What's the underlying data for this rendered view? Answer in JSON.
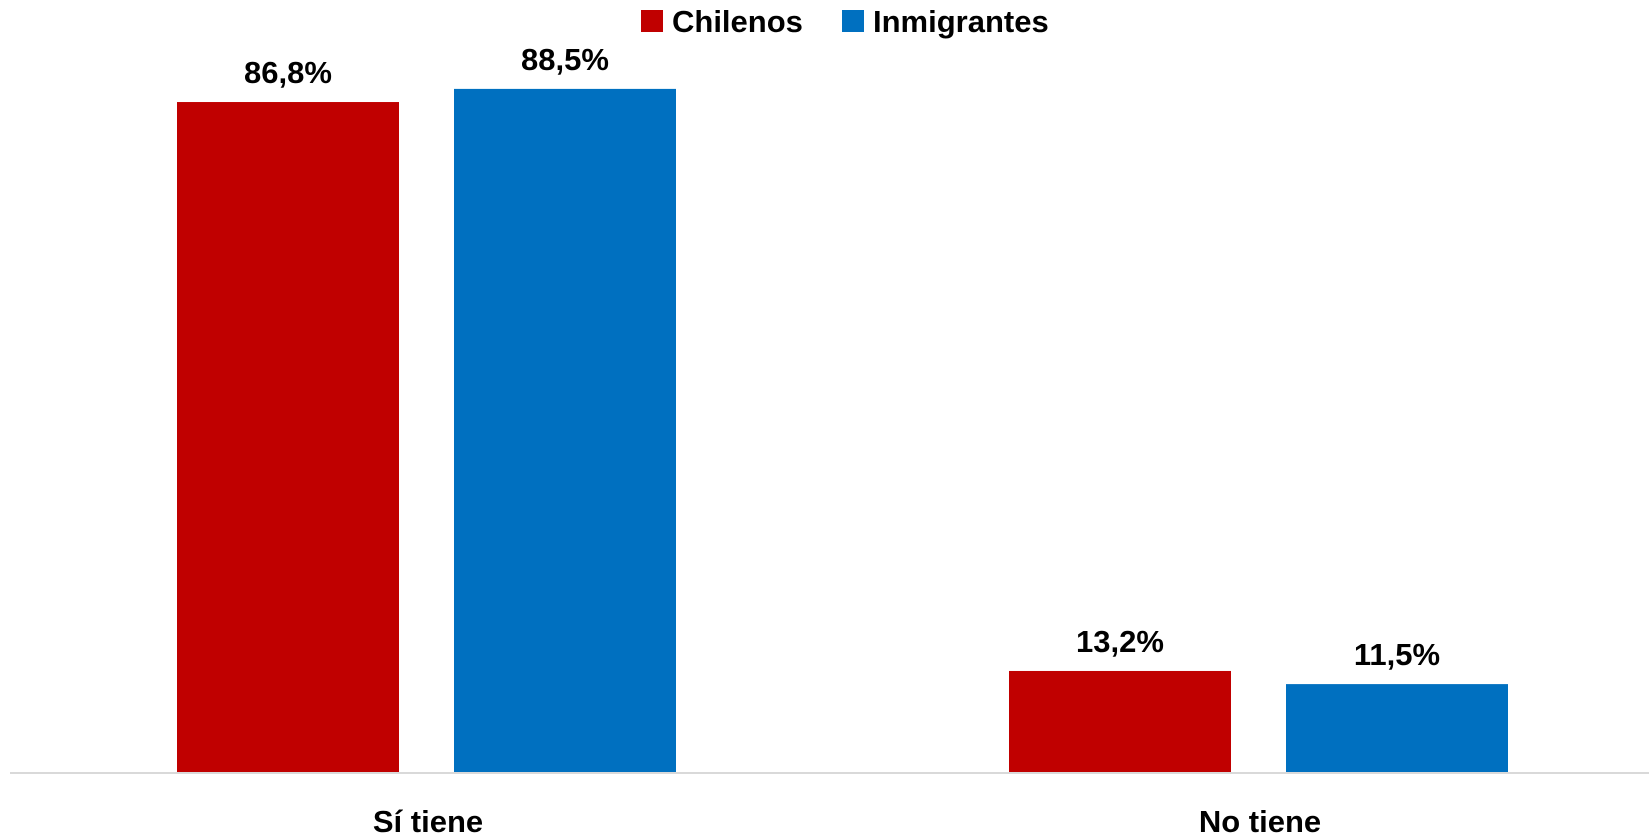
{
  "chart_data": {
    "type": "bar",
    "categories": [
      "Sí tiene",
      "No tiene"
    ],
    "series": [
      {
        "name": "Chilenos",
        "color": "#c00000",
        "values": [
          86.8,
          13.2
        ],
        "labels": [
          "86,8%",
          "13,2%"
        ]
      },
      {
        "name": "Inmigrantes",
        "color": "#0070c0",
        "values": [
          88.5,
          11.5
        ],
        "labels": [
          "88,5%",
          "11,5%"
        ]
      }
    ],
    "ylim": [
      0,
      100
    ],
    "grid": false,
    "legend_position": "top-center",
    "axis_color": "#d9d9d9"
  }
}
